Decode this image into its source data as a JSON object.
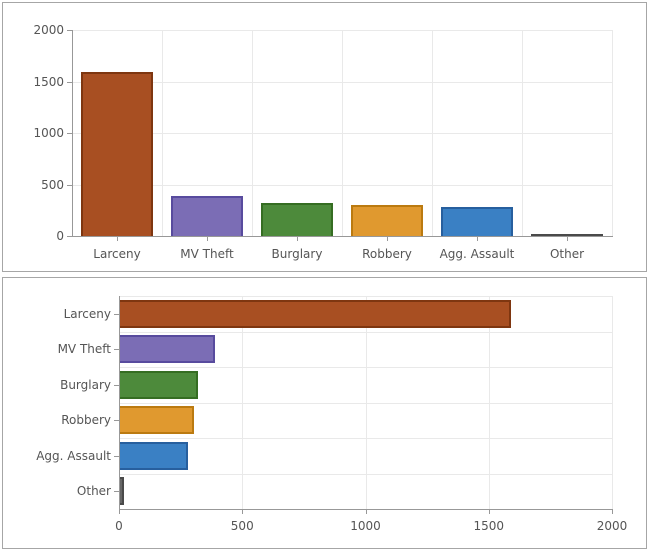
{
  "colors": {
    "grid": "#e9e9e9",
    "axis": "#989898",
    "label": "#555555",
    "panel_border": "#a6a6a6",
    "background": "#ffffff"
  },
  "chart_data": [
    {
      "type": "bar",
      "orientation": "vertical",
      "categories": [
        "Larceny",
        "MV Theft",
        "Burglary",
        "Robbery",
        "Agg. Assault",
        "Other"
      ],
      "values": [
        1590,
        390,
        320,
        305,
        280,
        20
      ],
      "bar_colors": [
        "#a84f22",
        "#7b6db5",
        "#4d8a3b",
        "#e0992f",
        "#3a80c4",
        "#666666"
      ],
      "bar_border_colors": [
        "#7e3610",
        "#584b9e",
        "#356d22",
        "#bb7a10",
        "#275f9e",
        "#4a4a4a"
      ],
      "value_axis": {
        "min": 0,
        "max": 2000,
        "ticks": [
          0,
          500,
          1000,
          1500,
          2000
        ]
      },
      "tick_labels": [
        "0",
        "500",
        "1000",
        "1500",
        "2000"
      ],
      "grid": true,
      "legend": false
    },
    {
      "type": "bar",
      "orientation": "horizontal",
      "categories": [
        "Larceny",
        "MV Theft",
        "Burglary",
        "Robbery",
        "Agg. Assault",
        "Other"
      ],
      "values": [
        1590,
        390,
        320,
        305,
        280,
        20
      ],
      "bar_colors": [
        "#a84f22",
        "#7b6db5",
        "#4d8a3b",
        "#e0992f",
        "#3a80c4",
        "#666666"
      ],
      "bar_border_colors": [
        "#7e3610",
        "#584b9e",
        "#356d22",
        "#bb7a10",
        "#275f9e",
        "#4a4a4a"
      ],
      "value_axis": {
        "min": 0,
        "max": 2000,
        "ticks": [
          0,
          500,
          1000,
          1500,
          2000
        ]
      },
      "tick_labels": [
        "0",
        "500",
        "1000",
        "1500",
        "2000"
      ],
      "grid": true,
      "legend": false
    }
  ]
}
